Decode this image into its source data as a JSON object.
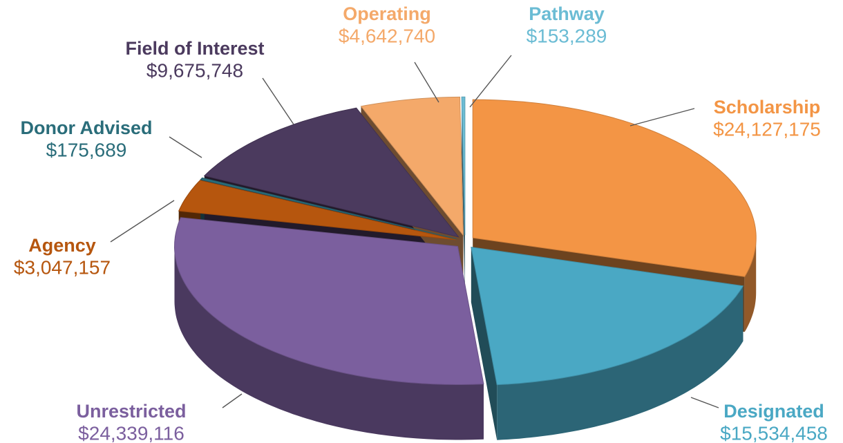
{
  "chart_data": {
    "type": "pie",
    "categories": [
      "Scholarship",
      "Designated",
      "Unrestricted",
      "Agency",
      "Donor Advised",
      "Field of Interest",
      "Operating",
      "Pathway"
    ],
    "values": [
      24127175,
      15534458,
      24339116,
      3047157,
      175689,
      9675748,
      4642740,
      153289
    ],
    "value_labels": [
      "$24,127,175",
      "$15,534,458",
      "$24,339,116",
      "$3,047,157",
      "$175,689",
      "$9,675,748",
      "$4,642,740",
      "$153,289"
    ],
    "colors": [
      "#f39545",
      "#4aa8c4",
      "#7b5f9e",
      "#b6560e",
      "#2a6d7a",
      "#4b3a5e",
      "#f4a96a",
      "#6bbcd4"
    ]
  }
}
